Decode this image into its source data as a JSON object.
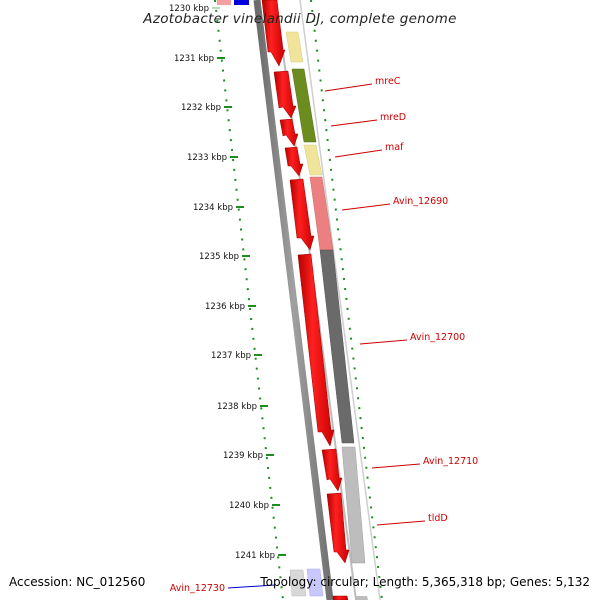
{
  "title": "Azotobacter vinelandii DJ, complete genome",
  "ticks": [
    {
      "label": "1230 kbp",
      "faded": true
    },
    {
      "label": "1231 kbp",
      "faded": false
    },
    {
      "label": "1232 kbp",
      "faded": false
    },
    {
      "label": "1233 kbp",
      "faded": false
    },
    {
      "label": "1234 kbp",
      "faded": false
    },
    {
      "label": "1235 kbp",
      "faded": false
    },
    {
      "label": "1236 kbp",
      "faded": false
    },
    {
      "label": "1237 kbp",
      "faded": false
    },
    {
      "label": "1238 kbp",
      "faded": false
    },
    {
      "label": "1239 kbp",
      "faded": false
    },
    {
      "label": "1240 kbp",
      "faded": false
    },
    {
      "label": "1241 kbp",
      "faded": false
    }
  ],
  "gene_labels": [
    {
      "name": "mreC",
      "color": "#cc0000"
    },
    {
      "name": "mreD",
      "color": "#cc0000"
    },
    {
      "name": "maf",
      "color": "#cc0000"
    },
    {
      "name": "Avin_12690",
      "color": "#cc0000"
    },
    {
      "name": "Avin_12700",
      "color": "#cc0000"
    },
    {
      "name": "Avin_12710",
      "color": "#cc0000"
    },
    {
      "name": "tldD",
      "color": "#cc0000"
    },
    {
      "name": "Avin_12730",
      "color": "#0000cc"
    }
  ],
  "footer": {
    "accession": "Accession: NC_012560",
    "topology": "Topology: circular; Length: 5,365,318 bp; Genes: 5,132"
  },
  "colors": {
    "gene_red": "#ee0000",
    "tick_green": "#1e8c1e",
    "label_red": "#cc0000",
    "label_blue": "#0000cc",
    "cog_olive": "#6b8c1e",
    "cog_yellow": "#efe49a",
    "cog_pink": "#ec8080",
    "cog_darkgray": "#6a6a6a",
    "cog_lightgray": "#bdbdbd",
    "cog_lavender": "#c8c8ff"
  }
}
